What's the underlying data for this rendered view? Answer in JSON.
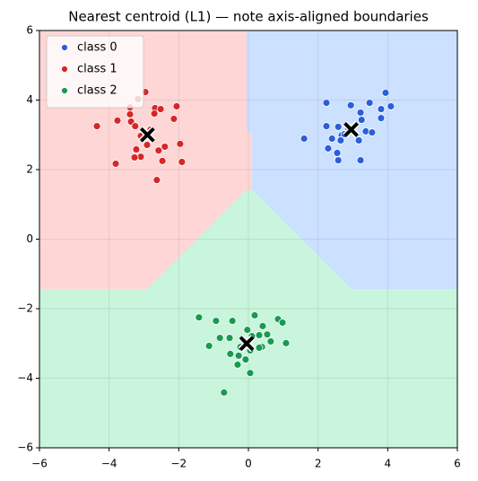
{
  "chart_data": {
    "type": "scatter",
    "title": "Nearest centroid (L1) — note axis-aligned boundaries",
    "xlim": [
      -6,
      6
    ],
    "ylim": [
      -6,
      6
    ],
    "xticks": [
      {
        "value": -6,
        "label": "−6"
      },
      {
        "value": -4,
        "label": "−4"
      },
      {
        "value": -2,
        "label": "−2"
      },
      0,
      2,
      4,
      6
    ],
    "yticks": [
      {
        "value": -6,
        "label": "−6"
      },
      {
        "value": -4,
        "label": "−4"
      },
      {
        "value": -2,
        "label": "−2"
      },
      0,
      2,
      4,
      6
    ],
    "grid": true,
    "legend": "upper left",
    "metric": "L1",
    "series": [
      {
        "name": "class 0",
        "color": "#2b5fd9",
        "region_color": "#cce0ff",
        "centroid": [
          2.95,
          3.15
        ],
        "x": [
          3.94,
          4.09,
          3.48,
          2.24,
          2.94,
          3.81,
          3.22,
          3.81,
          3.25,
          2.24,
          2.58,
          2.86,
          3.37,
          3.55,
          2.68,
          2.4,
          1.6,
          2.65,
          3.17,
          2.29,
          2.55,
          2.58,
          3.22,
          2.76
        ],
        "y": [
          4.21,
          3.82,
          3.92,
          3.92,
          3.85,
          3.74,
          3.64,
          3.48,
          3.43,
          3.25,
          3.23,
          3.2,
          3.1,
          3.07,
          2.99,
          2.89,
          2.89,
          2.84,
          2.84,
          2.61,
          2.48,
          2.27,
          2.27,
          3.02
        ]
      },
      {
        "name": "class 1",
        "color": "#d62728",
        "region_color": "#ffd6d6",
        "centroid": [
          -2.9,
          3.0
        ],
        "x": [
          -2.96,
          -4.35,
          -3.17,
          -3.4,
          -2.06,
          -2.68,
          -2.52,
          -2.7,
          -3.4,
          -2.14,
          -3.76,
          -3.37,
          -3.25,
          -2.81,
          -3.09,
          -1.96,
          -2.91,
          -2.4,
          -2.58,
          -3.22,
          -3.09,
          -3.27,
          -2.47,
          -1.91,
          -3.81,
          -2.63
        ],
        "y": [
          4.23,
          3.25,
          4.03,
          3.79,
          3.82,
          3.77,
          3.74,
          3.61,
          3.59,
          3.46,
          3.41,
          3.38,
          3.25,
          3.15,
          2.97,
          2.74,
          2.71,
          2.66,
          2.55,
          2.58,
          2.37,
          2.35,
          2.25,
          2.22,
          2.17,
          1.7
        ]
      },
      {
        "name": "class 2",
        "color": "#1a9a50",
        "region_color": "#c8f5dc",
        "centroid": [
          -0.05,
          -3.0
        ],
        "x": [
          -1.42,
          0.18,
          -0.93,
          -0.46,
          0.85,
          0.98,
          0.41,
          -0.03,
          0.31,
          0.54,
          -0.82,
          -0.54,
          0.1,
          0.64,
          1.08,
          -1.13,
          -0.23,
          0.39,
          0.05,
          -0.52,
          -0.28,
          -0.08,
          -0.31,
          0.05,
          -0.7,
          0.31
        ],
        "y": [
          -2.25,
          -2.19,
          -2.35,
          -2.35,
          -2.3,
          -2.4,
          -2.5,
          -2.61,
          -2.76,
          -2.74,
          -2.84,
          -2.84,
          -2.79,
          -2.94,
          -2.99,
          -3.07,
          -3.1,
          -3.1,
          -3.2,
          -3.3,
          -3.35,
          -3.46,
          -3.61,
          -3.85,
          -4.41,
          -3.12
        ]
      }
    ]
  }
}
